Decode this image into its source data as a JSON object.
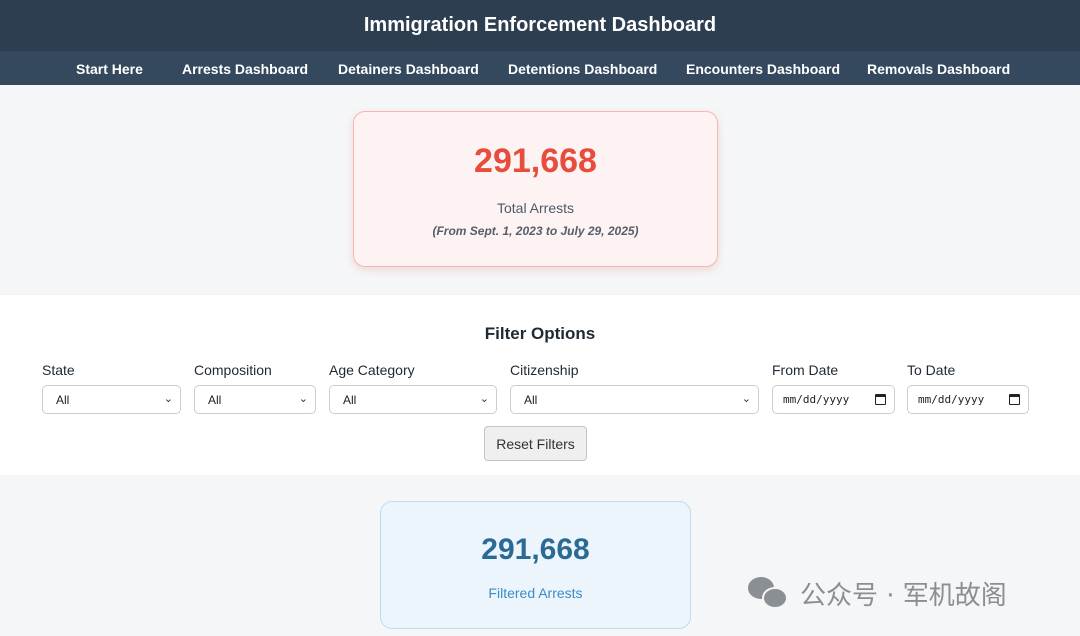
{
  "header": {
    "title": "Immigration Enforcement Dashboard"
  },
  "nav": {
    "items": [
      {
        "label": "Start Here"
      },
      {
        "label": "Arrests Dashboard"
      },
      {
        "label": "Detainers Dashboard"
      },
      {
        "label": "Detentions Dashboard"
      },
      {
        "label": "Encounters Dashboard"
      },
      {
        "label": "Removals Dashboard"
      }
    ]
  },
  "summary": {
    "total": "291,668",
    "label": "Total Arrests",
    "range": "(From Sept. 1, 2023 to July 29, 2025)"
  },
  "filters": {
    "title": "Filter Options",
    "state": {
      "label": "State",
      "value": "All"
    },
    "composition": {
      "label": "Composition",
      "value": "All"
    },
    "age": {
      "label": "Age Category",
      "value": "All"
    },
    "citizenship": {
      "label": "Citizenship",
      "value": "All"
    },
    "from_date": {
      "label": "From Date",
      "placeholder": "mm/dd/yyyy"
    },
    "to_date": {
      "label": "To Date",
      "placeholder": "mm/dd/yyyy"
    },
    "reset_label": "Reset Filters"
  },
  "filtered": {
    "total": "291,668",
    "label": "Filtered Arrests"
  },
  "watermark": {
    "text": "公众号 · 军机故阁"
  },
  "colors": {
    "header_bg": "#2c3e50",
    "nav_bg": "#34495e",
    "total_accent": "#e74c3c",
    "filtered_accent": "#2c6a96"
  }
}
